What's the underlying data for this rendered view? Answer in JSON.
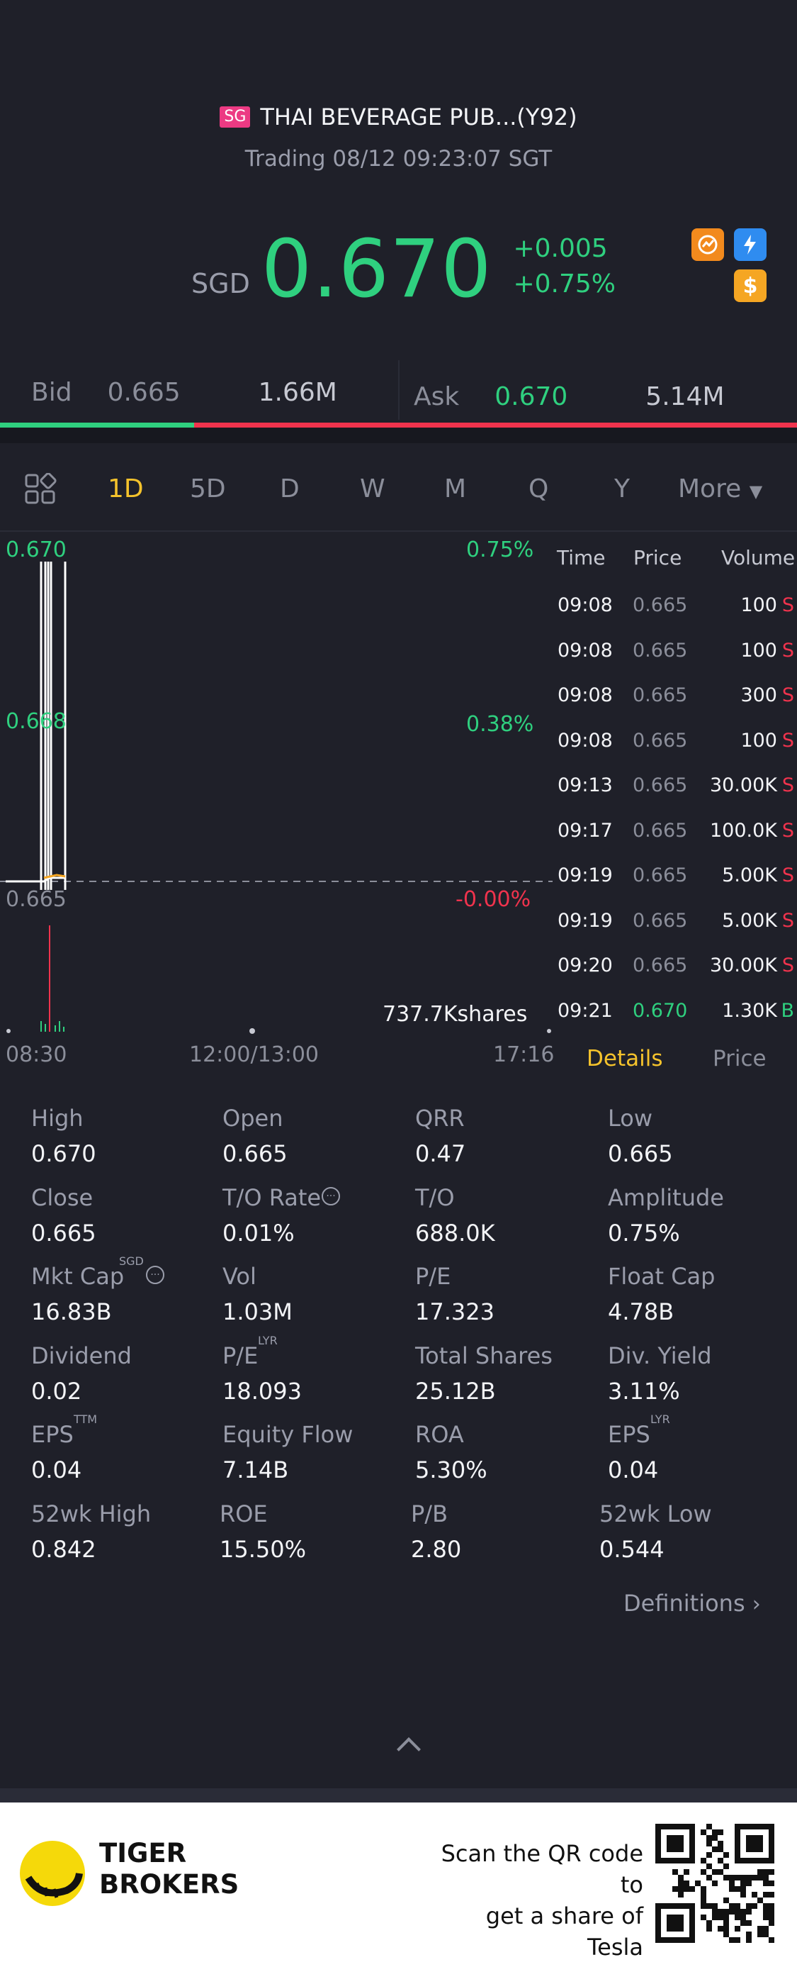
{
  "header": {
    "market_badge": "SG",
    "title": "THAI BEVERAGE PUB...(Y92)",
    "status": "Trading 08/12 09:23:07 SGT"
  },
  "quote": {
    "currency": "SGD",
    "price": "0.670",
    "change": "+0.005",
    "change_pct": "+0.75%"
  },
  "icons": [
    "fire-badge-icon",
    "flash-level1-icon",
    "dollar-icon"
  ],
  "bid_ask": {
    "bid_label": "Bid",
    "bid_price": "0.665",
    "bid_size": "1.66M",
    "ask_label": "Ask",
    "ask_price": "0.670",
    "ask_size": "5.14M",
    "bid_share": 0.243
  },
  "tabs": [
    "1D",
    "5D",
    "D",
    "W",
    "M",
    "Q",
    "Y",
    "More"
  ],
  "active_tab": "1D",
  "chart": {
    "y_top": "0.670",
    "y_mid": "0.668",
    "y_bottom": "0.665",
    "pct_top": "0.75%",
    "pct_mid": "0.38%",
    "pct_bottom": "-0.00%",
    "volume_label": "737.7Kshares",
    "x_start": "08:30",
    "x_mid": "12:00/13:00",
    "x_end": "17:16"
  },
  "chart_data": {
    "type": "line",
    "title": "",
    "x": [
      "08:30",
      "09:08",
      "09:13",
      "09:17",
      "09:19",
      "09:20",
      "09:21"
    ],
    "ylim": [
      0.665,
      0.67
    ],
    "series": [
      {
        "values": [
          0.665,
          0.665,
          0.665,
          0.665,
          0.665,
          0.665,
          0.67
        ]
      }
    ]
  },
  "trades": {
    "headers": {
      "time": "Time",
      "price": "Price",
      "volume": "Volume"
    },
    "rows": [
      {
        "time": "09:08",
        "price": "0.665",
        "volume": "100",
        "side": "S"
      },
      {
        "time": "09:08",
        "price": "0.665",
        "volume": "100",
        "side": "S"
      },
      {
        "time": "09:08",
        "price": "0.665",
        "volume": "300",
        "side": "S"
      },
      {
        "time": "09:08",
        "price": "0.665",
        "volume": "100",
        "side": "S"
      },
      {
        "time": "09:13",
        "price": "0.665",
        "volume": "30.00K",
        "side": "S"
      },
      {
        "time": "09:17",
        "price": "0.665",
        "volume": "100.0K",
        "side": "S"
      },
      {
        "time": "09:19",
        "price": "0.665",
        "volume": "5.00K",
        "side": "S"
      },
      {
        "time": "09:19",
        "price": "0.665",
        "volume": "5.00K",
        "side": "S"
      },
      {
        "time": "09:20",
        "price": "0.665",
        "volume": "30.00K",
        "side": "S"
      },
      {
        "time": "09:21",
        "price": "0.670",
        "volume": "1.30K",
        "side": "B"
      }
    ],
    "tab_details": "Details",
    "tab_price": "Price"
  },
  "stats": [
    {
      "label": "High",
      "value": "0.670"
    },
    {
      "label": "Open",
      "value": "0.665"
    },
    {
      "label": "QRR",
      "value": "0.47"
    },
    {
      "label": "Low",
      "value": "0.665"
    },
    {
      "label": "Close",
      "value": "0.665"
    },
    {
      "label": "T/O Rate",
      "value": "0.01%"
    },
    {
      "label": "T/O",
      "value": "688.0K"
    },
    {
      "label": "Amplitude",
      "value": "0.75%"
    },
    {
      "label": "Mkt Cap",
      "value": "16.83B",
      "sup": "SGD"
    },
    {
      "label": "Vol",
      "value": "1.03M"
    },
    {
      "label": "P/E",
      "value": "17.323"
    },
    {
      "label": "Float Cap",
      "value": "4.78B"
    },
    {
      "label": "Dividend",
      "value": "0.02"
    },
    {
      "label": "P/E",
      "value": "18.093",
      "sup": "LYR"
    },
    {
      "label": "Total Shares",
      "value": "25.12B"
    },
    {
      "label": "Div. Yield",
      "value": "3.11%"
    },
    {
      "label": "EPS",
      "value": "0.04",
      "sup": "TTM"
    },
    {
      "label": "Equity Flow",
      "value": "7.14B"
    },
    {
      "label": "ROA",
      "value": "5.30%"
    },
    {
      "label": "EPS",
      "value": "0.04",
      "sup": "LYR"
    },
    {
      "label": "52wk High",
      "value": "0.842"
    },
    {
      "label": "ROE",
      "value": "15.50%"
    },
    {
      "label": "P/B",
      "value": "2.80"
    },
    {
      "label": "52wk Low",
      "value": "0.544"
    }
  ],
  "definitions": "Definitions",
  "footer": {
    "brand_line1": "TIGER",
    "brand_line2": "BROKERS",
    "promo_line1": "Scan the QR code to",
    "promo_line2": "get a share of Tesla"
  },
  "colors": {
    "up": "#2fd07f",
    "down": "#f0334d",
    "accent": "#f5c32c",
    "background": "#1f2029"
  }
}
